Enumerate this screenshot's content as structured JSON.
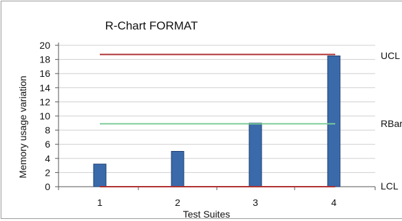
{
  "chart_data": {
    "type": "bar",
    "title": "R-Chart FORMAT",
    "xlabel": "Test Suites",
    "ylabel": "Memory usage variation",
    "categories": [
      "1",
      "2",
      "3",
      "4"
    ],
    "values": [
      3.2,
      5.0,
      9.0,
      18.5
    ],
    "ylim": [
      0,
      20
    ],
    "yticks": [
      0,
      2,
      4,
      6,
      8,
      10,
      12,
      14,
      16,
      18,
      20
    ],
    "grid": true,
    "bar_color": "#3a6aaa",
    "control_lines": [
      {
        "name": "UCL",
        "value": 18.7,
        "color": "#b03030"
      },
      {
        "name": "RBar",
        "value": 8.9,
        "color": "#7ccc9a"
      },
      {
        "name": "LCL",
        "value": 0,
        "color": "#b03030"
      }
    ]
  }
}
